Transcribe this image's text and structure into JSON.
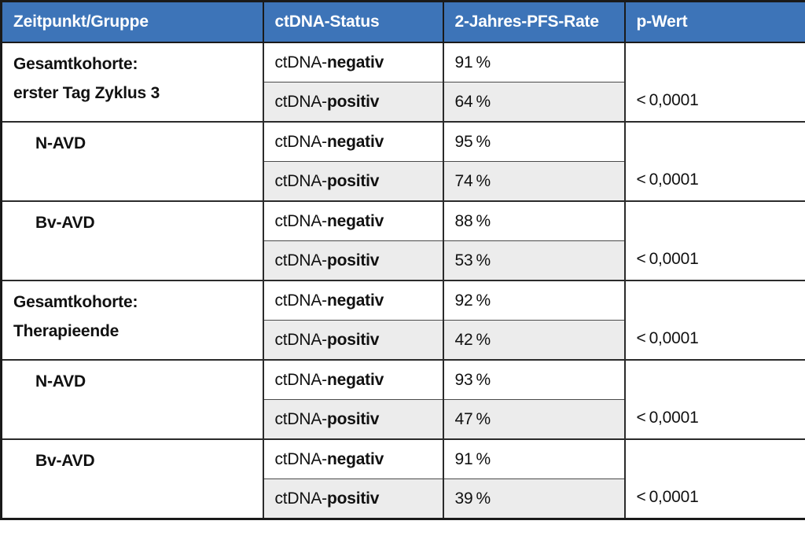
{
  "colors": {
    "header_bg": "#3d74b8",
    "header_text": "#ffffff",
    "shaded_cell": "#ececec",
    "border": "#2b2b2b",
    "text": "#111111"
  },
  "table": {
    "headers": [
      "Zeitpunkt/Gruppe",
      "ctDNA-Status",
      "2-Jahres-PFS-Rate",
      "p-Wert"
    ],
    "sections": [
      {
        "group_lines": [
          "Gesamtkohorte:",
          "erster Tag Zyklus 3"
        ],
        "indent": false,
        "rows": [
          {
            "status_prefix": "ctDNA-",
            "status_suffix": "negativ",
            "rate": "91 %"
          },
          {
            "status_prefix": "ctDNA-",
            "status_suffix": "positiv",
            "rate": "64 %"
          }
        ],
        "p_value": "< 0,0001"
      },
      {
        "group_lines": [
          "N-AVD"
        ],
        "indent": true,
        "rows": [
          {
            "status_prefix": "ctDNA-",
            "status_suffix": "negativ",
            "rate": "95 %"
          },
          {
            "status_prefix": "ctDNA-",
            "status_suffix": "positiv",
            "rate": "74 %"
          }
        ],
        "p_value": "< 0,0001"
      },
      {
        "group_lines": [
          "Bv-AVD"
        ],
        "indent": true,
        "rows": [
          {
            "status_prefix": "ctDNA-",
            "status_suffix": "negativ",
            "rate": "88 %"
          },
          {
            "status_prefix": "ctDNA-",
            "status_suffix": "positiv",
            "rate": "53 %"
          }
        ],
        "p_value": "< 0,0001"
      },
      {
        "group_lines": [
          "Gesamtkohorte:",
          "Therapieende"
        ],
        "indent": false,
        "rows": [
          {
            "status_prefix": "ctDNA-",
            "status_suffix": "negativ",
            "rate": "92 %"
          },
          {
            "status_prefix": "ctDNA-",
            "status_suffix": "positiv",
            "rate": "42 %"
          }
        ],
        "p_value": "< 0,0001"
      },
      {
        "group_lines": [
          "N-AVD"
        ],
        "indent": true,
        "rows": [
          {
            "status_prefix": "ctDNA-",
            "status_suffix": "negativ",
            "rate": "93 %"
          },
          {
            "status_prefix": "ctDNA-",
            "status_suffix": "positiv",
            "rate": "47 %"
          }
        ],
        "p_value": "< 0,0001"
      },
      {
        "group_lines": [
          "Bv-AVD"
        ],
        "indent": true,
        "rows": [
          {
            "status_prefix": "ctDNA-",
            "status_suffix": "negativ",
            "rate": "91 %"
          },
          {
            "status_prefix": "ctDNA-",
            "status_suffix": "positiv",
            "rate": "39 %"
          }
        ],
        "p_value": "< 0,0001"
      }
    ]
  }
}
